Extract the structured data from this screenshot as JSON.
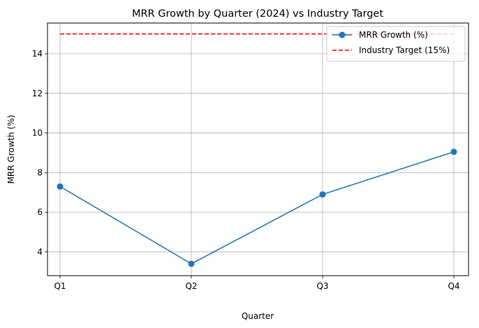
{
  "chart_data": {
    "type": "line",
    "title": "MRR Growth by Quarter (2024) vs Industry Target",
    "xlabel": "Quarter",
    "ylabel": "MRR Growth (%)",
    "categories": [
      "Q1",
      "Q2",
      "Q3",
      "Q4"
    ],
    "ylim": [
      2.8,
      15.55
    ],
    "yticks": [
      4,
      6,
      8,
      10,
      12,
      14
    ],
    "grid": true,
    "legend_position": "top-right",
    "series": [
      {
        "name": "MRR Growth (%)",
        "values": [
          7.3,
          3.4,
          6.9,
          9.05
        ],
        "color": "#1f77b4",
        "style": "solid",
        "marker": "circle"
      },
      {
        "name": "Industry Target (15%)",
        "values": [
          15,
          15,
          15,
          15
        ],
        "color": "#ff0000",
        "style": "dashed",
        "marker": "none"
      }
    ]
  }
}
